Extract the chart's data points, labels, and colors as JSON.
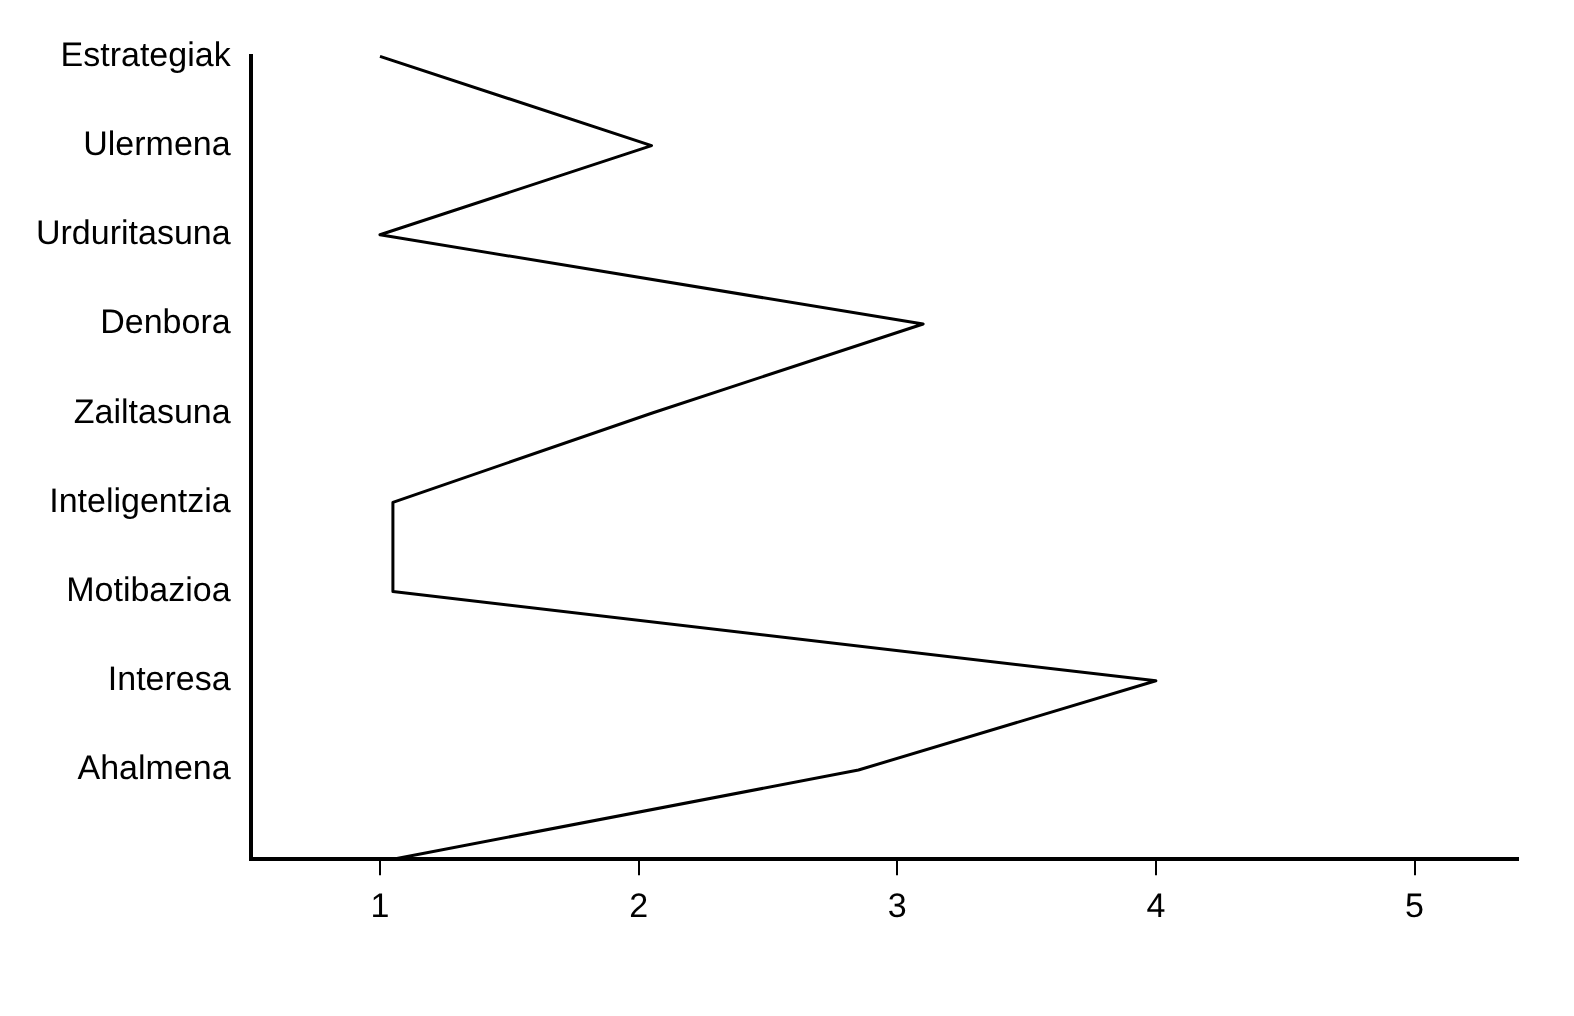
{
  "chart_data": {
    "type": "line",
    "orientation": "horizontal",
    "categories": [
      "Estrategiak",
      "Ulermena",
      "Urduritasuna",
      "Denbora",
      "Zailtasuna",
      "Inteligentzia",
      "Motibazioa",
      "Interesa",
      "Ahalmena",
      null
    ],
    "series": [
      {
        "color": "#000000",
        "values": [
          1,
          2.05,
          1,
          3.1,
          2.05,
          1.05,
          1.05,
          4,
          2.85,
          1.05
        ]
      }
    ],
    "xlim": [
      0.5,
      5.4
    ],
    "xticks": [
      1,
      2,
      3,
      4,
      5
    ],
    "grid": false,
    "legend": false,
    "marker": "none",
    "line_style": "solid"
  }
}
